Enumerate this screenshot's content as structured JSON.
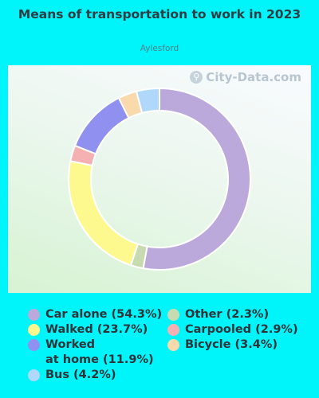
{
  "chart_data": {
    "type": "pie",
    "title": "Means of transportation to work in 2023",
    "subtitle": "Aylesford",
    "slices": [
      {
        "label": "Car alone",
        "value": 54.3,
        "display": "Car alone (54.3%)",
        "color": "#bca9dc"
      },
      {
        "label": "Other",
        "value": 2.3,
        "display": "Other (2.3%)",
        "color": "#c8dbb0"
      },
      {
        "label": "Walked",
        "value": 23.7,
        "display": "Walked (23.7%)",
        "color": "#fdf98f"
      },
      {
        "label": "Carpooled",
        "value": 2.9,
        "display": "Carpooled (2.9%)",
        "color": "#f5b1b1"
      },
      {
        "label": "Worked at home",
        "value": 11.9,
        "display": "Worked\nat home (11.9%)",
        "color": "#8f90f0"
      },
      {
        "label": "Bicycle",
        "value": 3.4,
        "display": "Bicycle (3.4%)",
        "color": "#fad9ad"
      },
      {
        "label": "Bus",
        "value": 4.2,
        "display": "Bus (4.2%)",
        "color": "#b0d8fb"
      }
    ],
    "legend_position": "bottom"
  },
  "watermark": "City-Data.com"
}
